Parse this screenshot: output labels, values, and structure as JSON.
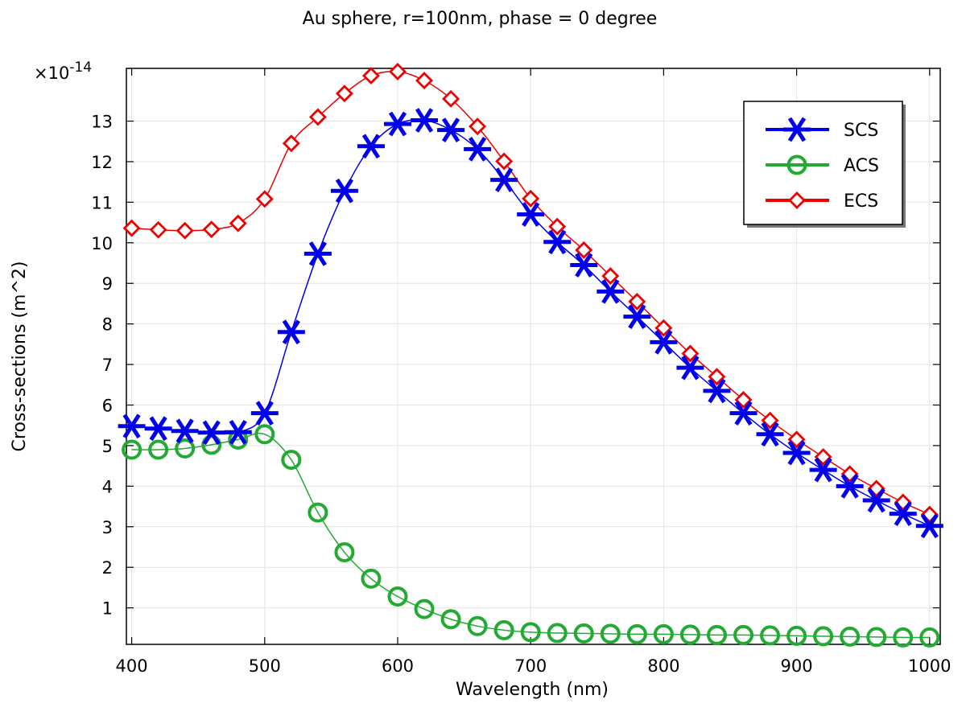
{
  "chart_data": {
    "type": "line",
    "title": "Au sphere, r=100nm, phase = 0 degree",
    "xlabel": "Wavelength (nm)",
    "ylabel": "Cross-sections (m^2)",
    "y_multiplier": {
      "base": "×10",
      "exponent": "-14"
    },
    "xlim": [
      396,
      1008
    ],
    "ylim": [
      0.1,
      14.3
    ],
    "x_ticks": [
      400,
      500,
      600,
      700,
      800,
      900,
      1000
    ],
    "y_ticks": [
      1,
      2,
      3,
      4,
      5,
      6,
      7,
      8,
      9,
      10,
      11,
      12,
      13
    ],
    "grid": true,
    "legend_position": "top-right",
    "x": [
      400,
      420,
      440,
      460,
      480,
      500,
      520,
      540,
      560,
      580,
      600,
      620,
      640,
      660,
      680,
      700,
      720,
      740,
      760,
      780,
      800,
      820,
      840,
      860,
      880,
      900,
      920,
      940,
      960,
      980,
      1000
    ],
    "series": [
      {
        "name": "SCS",
        "color": "#0000ee",
        "marker": "asterisk",
        "values": [
          5.48,
          5.42,
          5.36,
          5.32,
          5.33,
          5.8,
          7.8,
          9.73,
          11.28,
          12.38,
          12.93,
          13.02,
          12.78,
          12.31,
          11.55,
          10.7,
          10.02,
          9.45,
          8.8,
          8.18,
          7.55,
          6.92,
          6.35,
          5.8,
          5.28,
          4.82,
          4.4,
          4.0,
          3.65,
          3.32,
          3.02
        ]
      },
      {
        "name": "ACS",
        "color": "#22aa33",
        "marker": "circle",
        "values": [
          4.9,
          4.9,
          4.93,
          5.02,
          5.15,
          5.28,
          4.65,
          3.35,
          2.37,
          1.72,
          1.28,
          0.97,
          0.72,
          0.55,
          0.45,
          0.4,
          0.38,
          0.37,
          0.36,
          0.35,
          0.35,
          0.34,
          0.33,
          0.33,
          0.32,
          0.31,
          0.3,
          0.29,
          0.28,
          0.27,
          0.27
        ]
      },
      {
        "name": "ECS",
        "color": "#ee0000",
        "marker": "diamond",
        "values": [
          10.36,
          10.32,
          10.3,
          10.33,
          10.48,
          11.08,
          12.45,
          13.1,
          13.68,
          14.12,
          14.22,
          14.0,
          13.55,
          12.87,
          12.01,
          11.09,
          10.4,
          9.82,
          9.18,
          8.55,
          7.9,
          7.27,
          6.7,
          6.13,
          5.62,
          5.15,
          4.72,
          4.3,
          3.94,
          3.6,
          3.3
        ]
      }
    ]
  }
}
